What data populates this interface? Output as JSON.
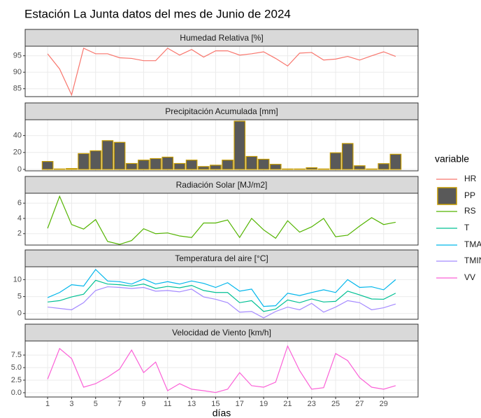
{
  "chart_data": {
    "title": "Estación La Junta datos del mes de Junio de 2024",
    "xlabel": "días",
    "legend_title": "variable",
    "x": [
      1,
      2,
      3,
      4,
      5,
      6,
      7,
      8,
      9,
      10,
      11,
      12,
      13,
      14,
      15,
      16,
      17,
      18,
      19,
      20,
      21,
      22,
      23,
      24,
      25,
      26,
      27,
      28,
      29,
      30
    ],
    "xlim": [
      -0.87,
      31.87
    ],
    "xticks": [
      1,
      3,
      5,
      7,
      9,
      11,
      13,
      15,
      17,
      19,
      21,
      23,
      25,
      27,
      29
    ],
    "grid": true,
    "panels": [
      {
        "type": "line",
        "title": "Humedad Relativa [%]",
        "ylim": [
          82.6,
          97.9
        ],
        "yticks": [
          85,
          90,
          95
        ],
        "series": [
          {
            "name": "HR",
            "color": "#F8766D",
            "values": [
              95.6,
              91,
              83.1,
              97.3,
              95.6,
              95.6,
              94.4,
              94.2,
              93.5,
              93.5,
              97.3,
              95.2,
              96.9,
              94.6,
              96.5,
              96.5,
              95.2,
              95.6,
              96.2,
              94.2,
              91.9,
              95.8,
              96,
              93.7,
              94,
              94.8,
              93.7,
              95,
              96.2,
              94.8
            ]
          }
        ]
      },
      {
        "type": "bar",
        "title": "Precipitación Acumulada [mm]",
        "ylim": [
          -1.7,
          58.7
        ],
        "yticks": [
          0,
          20,
          40
        ],
        "series": [
          {
            "name": "PP",
            "color": "#C49A00",
            "fill": "#595959",
            "values": [
              9.4,
              0.5,
              1,
              18.7,
              22,
              34,
              32,
              7,
              11,
              12.8,
              14.5,
              7,
              11,
              3.4,
              5,
              11,
              57,
              15.3,
              12,
              6,
              0.5,
              0.5,
              2,
              0.5,
              19.6,
              30.6,
              4.3,
              0.5,
              6.8,
              17.9
            ]
          }
        ]
      },
      {
        "type": "line",
        "title": "Radiación Solar [MJ/m2]",
        "ylim": [
          0.51,
          7.3
        ],
        "yticks": [
          2,
          4,
          6
        ],
        "series": [
          {
            "name": "RS",
            "color": "#53B400",
            "values": [
              2.7,
              6.9,
              3.2,
              2.6,
              3.85,
              0.98,
              0.6,
              1.1,
              2.65,
              2,
              2.1,
              1.7,
              1.5,
              3.4,
              3.4,
              3.8,
              1.5,
              4,
              2.5,
              1.4,
              3.7,
              2.2,
              2.9,
              4,
              1.6,
              1.8,
              3,
              4.1,
              3.2,
              3.5
            ]
          }
        ]
      },
      {
        "type": "line",
        "title": "Temperatura del aire [°C]",
        "ylim": [
          -1.7,
          13.8
        ],
        "yticks": [
          0,
          5,
          10
        ],
        "series": [
          {
            "name": "T",
            "color": "#00C094",
            "values": [
              3.4,
              3.8,
              4.9,
              5.7,
              9.8,
              8.7,
              8.5,
              8.1,
              8.7,
              7.4,
              8,
              7.6,
              8.3,
              6.8,
              6.2,
              6.2,
              3.2,
              3.8,
              0.6,
              1.3,
              4,
              3.2,
              4.3,
              3.4,
              3.6,
              6.6,
              5.5,
              4.3,
              4.2,
              6
            ]
          },
          {
            "name": "TMAX",
            "color": "#00B6EB",
            "values": [
              4.7,
              6.2,
              8.5,
              8.1,
              13,
              9.6,
              9.4,
              8.7,
              10.2,
              8.7,
              9.4,
              8.7,
              9.6,
              8.9,
              7.7,
              9.1,
              6.6,
              7.2,
              2.1,
              2.3,
              6,
              5.3,
              6.2,
              7,
              6.2,
              10,
              7.7,
              7.9,
              7,
              10
            ]
          },
          {
            "name": "TMIN",
            "color": "#A58AFF",
            "values": [
              1.9,
              1.5,
              1.1,
              3.2,
              6.8,
              7.9,
              7.7,
              7.4,
              7.7,
              6.6,
              6.8,
              6.4,
              7.2,
              4.9,
              4.2,
              3.2,
              0.4,
              0.6,
              -1.3,
              0.6,
              1.9,
              1.1,
              3,
              0.4,
              1.9,
              3.8,
              3.2,
              1.1,
              1.7,
              2.8
            ]
          }
        ]
      },
      {
        "type": "line",
        "title": "Velocidad de Viento [km/h]",
        "ylim": [
          -0.85,
          10.3
        ],
        "yticks": [
          {
            "value": 0,
            "label": "0.0"
          },
          2.5,
          {
            "value": 5,
            "label": "5.0"
          },
          7.5
        ],
        "series": [
          {
            "name": "VV",
            "color": "#FB61D7",
            "values": [
              2.7,
              8.8,
              6.8,
              1.1,
              1.8,
              3.1,
              4.7,
              8.5,
              4,
              6.1,
              0.4,
              1.8,
              0.7,
              0.4,
              0.05,
              0.7,
              4,
              1.4,
              1.1,
              2.1,
              9.3,
              4.4,
              0.7,
              1,
              7.8,
              6.4,
              3,
              1.1,
              0.7,
              1.4
            ]
          }
        ]
      }
    ]
  }
}
